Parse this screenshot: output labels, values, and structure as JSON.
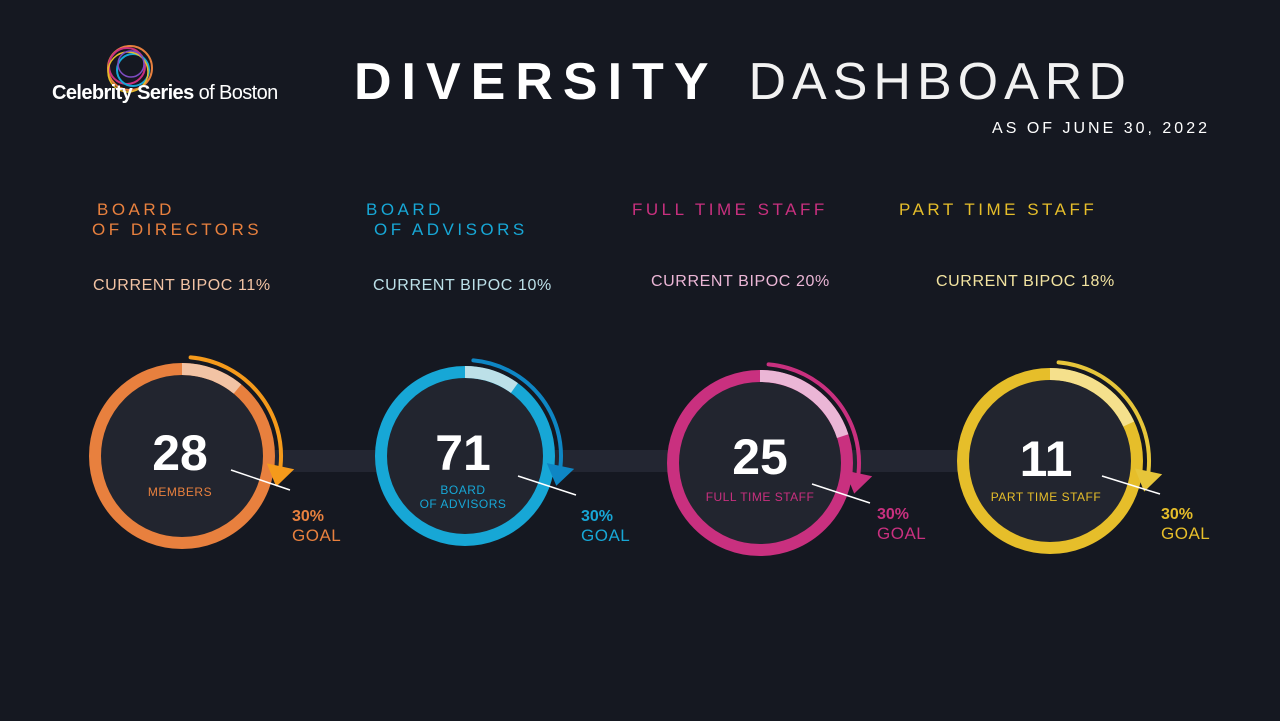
{
  "header": {
    "logo_text_bold": "Celebrity Series",
    "logo_text_light": "of Boston",
    "title_bold": "DIVERSITY",
    "title_light": "DASHBOARD",
    "as_of": "AS OF JUNE 30, 2022"
  },
  "colors": {
    "background": "#151821",
    "orange": "#E8803E",
    "blue": "#17A7D6",
    "magenta": "#C9307F",
    "yellow": "#E6BE2A"
  },
  "goal_percent": 30,
  "groups": [
    {
      "id": "board-of-directors",
      "category_line1": "BOARD",
      "category_line2": "OF DIRECTORS",
      "current_bipoc": "CURRENT BIPOC 11%",
      "bipoc_percent": 11,
      "count": "28",
      "label_line1": "MEMBERS",
      "label_line2": "",
      "goal_pct": "30%",
      "goal_label": "GOAL"
    },
    {
      "id": "board-of-advisors",
      "category_line1": "BOARD",
      "category_line2": "OF ADVISORS",
      "current_bipoc": "CURRENT BIPOC 10%",
      "bipoc_percent": 10,
      "count": "71",
      "label_line1": "BOARD",
      "label_line2": "OF ADVISORS",
      "goal_pct": "30%",
      "goal_label": "GOAL"
    },
    {
      "id": "full-time-staff",
      "category_line1": "FULL TIME STAFF",
      "category_line2": "",
      "current_bipoc": "CURRENT BIPOC 20%",
      "bipoc_percent": 20,
      "count": "25",
      "label_line1": "FULL TIME STAFF",
      "label_line2": "",
      "goal_pct": "30%",
      "goal_label": "GOAL"
    },
    {
      "id": "part-time-staff",
      "category_line1": "PART TIME STAFF",
      "category_line2": "",
      "current_bipoc": "CURRENT BIPOC 18%",
      "bipoc_percent": 18,
      "count": "11",
      "label_line1": "PART TIME STAFF",
      "label_line2": "",
      "goal_pct": "30%",
      "goal_label": "GOAL"
    }
  ]
}
